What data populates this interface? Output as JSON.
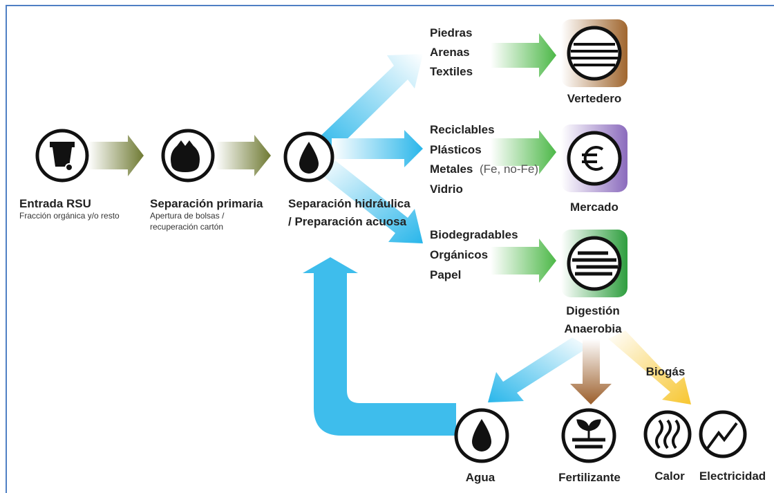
{
  "stages": [
    {
      "title": "Entrada RSU",
      "subtitle": [
        "Fracción orgánica y/o resto"
      ]
    },
    {
      "title": "Separación primaria",
      "subtitle": [
        "Apertura de bolsas /",
        "recuperación cartón"
      ]
    },
    {
      "title": [
        "Separación hidráulica",
        "/ Preparación acuosa"
      ]
    }
  ],
  "streams": [
    {
      "items": [
        "Piedras",
        "Arenas",
        "Textiles"
      ],
      "destination": "Vertedero"
    },
    {
      "items": [
        "Reciclables",
        "Plásticos",
        "Metales",
        "Vidrio"
      ],
      "note": "(Fe, no-Fe)",
      "destination": "Mercado"
    },
    {
      "items": [
        "Biodegradables",
        "Orgánicos",
        "Papel"
      ],
      "destination": [
        "Digestión",
        "Anaerobia"
      ]
    }
  ],
  "products": {
    "gas": "Biogás",
    "outputs": [
      "Agua",
      "Fertilizante",
      "Calor",
      "Electricidad"
    ]
  }
}
